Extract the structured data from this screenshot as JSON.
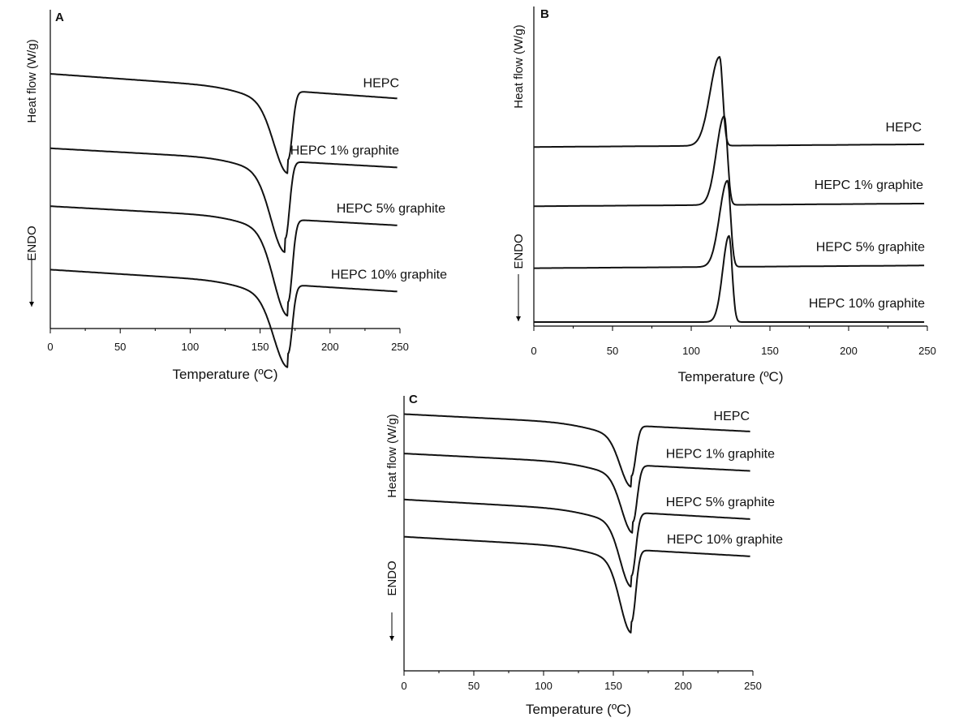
{
  "chart_data": [
    {
      "panel": "A",
      "type": "line",
      "xlabel": "Temperature (ºC)",
      "ylabel": "Heat flow (W/g)",
      "endo_label": "ENDO",
      "xlim": [
        0,
        250
      ],
      "xticks": [
        "0",
        "50",
        "100",
        "150",
        "200",
        "250"
      ],
      "direction": "endo-down",
      "peak_type": "valley",
      "series": [
        {
          "name": "HEPC",
          "baseline_start": 0.85,
          "baseline_end": 0.76,
          "peak_temp": 170,
          "peak_depth": 0.25,
          "width_left": 10,
          "width_right": 3,
          "color": "#6a6a6a"
        },
        {
          "name": "HEPC 1% graphite",
          "baseline_start": 0.58,
          "baseline_end": 0.51,
          "peak_temp": 168,
          "peak_depth": 0.28,
          "width_left": 10,
          "width_right": 3,
          "color": "#111111"
        },
        {
          "name": "HEPC 5% graphite",
          "baseline_start": 0.37,
          "baseline_end": 0.3,
          "peak_temp": 170,
          "peak_depth": 0.3,
          "width_left": 10,
          "width_right": 3,
          "color": "#111111"
        },
        {
          "name": "HEPC 10% graphite",
          "baseline_start": 0.14,
          "baseline_end": 0.06,
          "peak_temp": 170,
          "peak_depth": 0.25,
          "width_left": 10,
          "width_right": 3,
          "color": "#111111"
        }
      ]
    },
    {
      "panel": "B",
      "type": "line",
      "xlabel": "Temperature (ºC)",
      "ylabel": "Heat flow (W/g)",
      "endo_label": "ENDO",
      "xlim": [
        0,
        250
      ],
      "xticks": [
        "0",
        "50",
        "100",
        "150",
        "200",
        "250"
      ],
      "direction": "endo-down",
      "peak_type": "peak",
      "series": [
        {
          "name": "HEPC",
          "baseline_start": 0.65,
          "baseline_end": 0.66,
          "peak_temp": 118,
          "peak_depth": 0.33,
          "width_left": 6,
          "width_right": 2,
          "color": "#111111"
        },
        {
          "name": "HEPC 1% graphite",
          "baseline_start": 0.43,
          "baseline_end": 0.44,
          "peak_temp": 121,
          "peak_depth": 0.33,
          "width_left": 5,
          "width_right": 2,
          "color": "#111111"
        },
        {
          "name": "HEPC 5% graphite",
          "baseline_start": 0.2,
          "baseline_end": 0.21,
          "peak_temp": 123,
          "peak_depth": 0.32,
          "width_left": 5,
          "width_right": 2,
          "color": "#111111"
        },
        {
          "name": "HEPC 10% graphite",
          "baseline_start": 0.0,
          "baseline_end": 0.0,
          "peak_temp": 124,
          "peak_depth": 0.32,
          "width_left": 4,
          "width_right": 2,
          "color": "#111111"
        }
      ]
    },
    {
      "panel": "C",
      "type": "line",
      "xlabel": "Temperature (ºC)",
      "ylabel": "Heat flow (W/g)",
      "endo_label": "ENDO",
      "xlim": [
        0,
        250
      ],
      "xticks": [
        "0",
        "50",
        "100",
        "150",
        "200",
        "250"
      ],
      "direction": "endo-down",
      "peak_type": "valley",
      "series": [
        {
          "name": "HEPC",
          "baseline_start": 0.85,
          "baseline_end": 0.77,
          "peak_temp": 163,
          "peak_depth": 0.23,
          "width_left": 8,
          "width_right": 3,
          "color": "#111111"
        },
        {
          "name": "HEPC 1% graphite",
          "baseline_start": 0.67,
          "baseline_end": 0.59,
          "peak_temp": 164,
          "peak_depth": 0.26,
          "width_left": 8,
          "width_right": 3,
          "color": "#111111"
        },
        {
          "name": "HEPC 5% graphite",
          "baseline_start": 0.46,
          "baseline_end": 0.37,
          "peak_temp": 163,
          "peak_depth": 0.29,
          "width_left": 8,
          "width_right": 3,
          "color": "#111111"
        },
        {
          "name": "HEPC 10% graphite",
          "baseline_start": 0.29,
          "baseline_end": 0.2,
          "peak_temp": 163,
          "peak_depth": 0.33,
          "width_left": 8,
          "width_right": 3,
          "color": "#111111"
        }
      ]
    }
  ]
}
